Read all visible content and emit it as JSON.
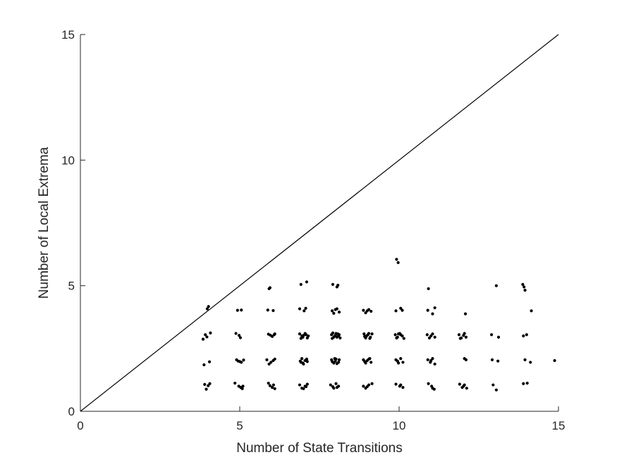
{
  "chart_data": {
    "type": "scatter",
    "xlabel": "Number of State Transitions",
    "ylabel": "Number of Local Extrema",
    "xlim": [
      0,
      15
    ],
    "ylim": [
      0,
      15
    ],
    "xticks": [
      0,
      5,
      10,
      15
    ],
    "yticks": [
      0,
      5,
      10,
      15
    ],
    "grid": false,
    "box": false,
    "reference_line": {
      "type": "identity",
      "x": [
        0,
        15
      ],
      "y": [
        0,
        15
      ],
      "color": "#000000"
    },
    "marker_color": "#000000",
    "points": [
      [
        3.98,
        4.08
      ],
      [
        4.02,
        4.17
      ],
      [
        3.92,
        3.05
      ],
      [
        4.08,
        3.12
      ],
      [
        3.85,
        2.87
      ],
      [
        3.97,
        2.96
      ],
      [
        3.88,
        1.85
      ],
      [
        4.05,
        1.97
      ],
      [
        3.9,
        1.07
      ],
      [
        4.01,
        1.02
      ],
      [
        3.95,
        0.88
      ],
      [
        4.06,
        1.1
      ],
      [
        4.93,
        4.02
      ],
      [
        5.05,
        4.03
      ],
      [
        4.88,
        3.1
      ],
      [
        4.98,
        3.02
      ],
      [
        5.02,
        2.93
      ],
      [
        4.95,
        2.0
      ],
      [
        5.05,
        1.95
      ],
      [
        5.12,
        2.04
      ],
      [
        4.9,
        2.05
      ],
      [
        5.0,
        1.98
      ],
      [
        4.85,
        1.12
      ],
      [
        4.97,
        1.0
      ],
      [
        5.08,
        0.9
      ],
      [
        5.1,
        1.0
      ],
      [
        5.03,
        0.95
      ],
      [
        5.92,
        4.88
      ],
      [
        5.95,
        4.92
      ],
      [
        5.88,
        4.03
      ],
      [
        6.05,
        4.01
      ],
      [
        5.9,
        3.07
      ],
      [
        6.02,
        2.98
      ],
      [
        6.1,
        3.08
      ],
      [
        5.96,
        3.03
      ],
      [
        6.08,
        3.05
      ],
      [
        5.85,
        2.05
      ],
      [
        5.98,
        1.95
      ],
      [
        6.1,
        2.08
      ],
      [
        5.92,
        1.88
      ],
      [
        6.05,
        2.02
      ],
      [
        5.9,
        1.12
      ],
      [
        6.02,
        0.95
      ],
      [
        6.1,
        0.9
      ],
      [
        5.95,
        1.02
      ],
      [
        6.06,
        1.05
      ],
      [
        6.92,
        5.05
      ],
      [
        7.1,
        5.15
      ],
      [
        6.88,
        4.08
      ],
      [
        7.07,
        4.1
      ],
      [
        7.02,
        4.0
      ],
      [
        6.88,
        3.08
      ],
      [
        6.95,
        3.0
      ],
      [
        7.05,
        3.1
      ],
      [
        7.12,
        2.92
      ],
      [
        6.98,
        2.95
      ],
      [
        7.08,
        3.05
      ],
      [
        6.92,
        2.9
      ],
      [
        7.0,
        3.02
      ],
      [
        7.15,
        3.0
      ],
      [
        6.9,
        2.0
      ],
      [
        6.98,
        1.92
      ],
      [
        7.05,
        2.02
      ],
      [
        7.12,
        1.98
      ],
      [
        6.95,
        2.1
      ],
      [
        7.0,
        1.88
      ],
      [
        7.1,
        2.08
      ],
      [
        6.92,
        1.95
      ],
      [
        6.88,
        1.05
      ],
      [
        6.95,
        0.92
      ],
      [
        7.05,
        1.0
      ],
      [
        7.12,
        1.08
      ],
      [
        7.0,
        0.9
      ],
      [
        7.08,
        0.98
      ],
      [
        7.92,
        5.05
      ],
      [
        8.08,
        5.02
      ],
      [
        8.05,
        4.95
      ],
      [
        7.9,
        4.0
      ],
      [
        7.95,
        3.9
      ],
      [
        8.05,
        4.08
      ],
      [
        8.12,
        3.95
      ],
      [
        8.0,
        4.05
      ],
      [
        7.88,
        3.05
      ],
      [
        7.95,
        2.95
      ],
      [
        8.02,
        3.1
      ],
      [
        8.1,
        3.0
      ],
      [
        8.15,
        2.92
      ],
      [
        7.9,
        2.9
      ],
      [
        8.0,
        3.02
      ],
      [
        8.08,
        3.08
      ],
      [
        7.98,
        3.0
      ],
      [
        8.12,
        3.05
      ],
      [
        7.92,
        3.12
      ],
      [
        8.05,
        2.95
      ],
      [
        7.88,
        2.05
      ],
      [
        7.95,
        1.92
      ],
      [
        8.02,
        2.08
      ],
      [
        8.1,
        1.95
      ],
      [
        8.0,
        2.0
      ],
      [
        8.12,
        2.05
      ],
      [
        7.9,
        1.98
      ],
      [
        8.05,
        1.9
      ],
      [
        7.98,
        2.1
      ],
      [
        7.85,
        1.05
      ],
      [
        7.95,
        0.92
      ],
      [
        8.02,
        1.1
      ],
      [
        8.1,
        1.0
      ],
      [
        8.05,
        0.95
      ],
      [
        7.92,
        0.98
      ],
      [
        8.88,
        4.02
      ],
      [
        8.95,
        3.92
      ],
      [
        9.05,
        4.05
      ],
      [
        9.12,
        3.98
      ],
      [
        9.0,
        4.0
      ],
      [
        8.9,
        3.08
      ],
      [
        8.95,
        2.92
      ],
      [
        9.02,
        3.05
      ],
      [
        9.1,
        2.95
      ],
      [
        9.15,
        3.08
      ],
      [
        8.98,
        3.0
      ],
      [
        9.08,
        2.9
      ],
      [
        8.92,
        2.98
      ],
      [
        9.05,
        3.1
      ],
      [
        8.88,
        2.05
      ],
      [
        8.95,
        1.92
      ],
      [
        9.05,
        2.08
      ],
      [
        9.12,
        1.95
      ],
      [
        9.0,
        2.02
      ],
      [
        9.08,
        2.1
      ],
      [
        8.92,
        1.98
      ],
      [
        8.88,
        1.0
      ],
      [
        8.95,
        0.92
      ],
      [
        9.05,
        1.05
      ],
      [
        9.15,
        1.1
      ],
      [
        9.0,
        0.98
      ],
      [
        9.92,
        6.05
      ],
      [
        9.97,
        5.92
      ],
      [
        9.9,
        4.0
      ],
      [
        10.05,
        4.1
      ],
      [
        10.1,
        4.02
      ],
      [
        9.88,
        3.05
      ],
      [
        9.95,
        2.95
      ],
      [
        10.02,
        3.1
      ],
      [
        10.1,
        3.0
      ],
      [
        10.15,
        2.9
      ],
      [
        9.92,
        2.92
      ],
      [
        10.05,
        3.05
      ],
      [
        9.98,
        3.08
      ],
      [
        9.9,
        2.05
      ],
      [
        9.98,
        1.92
      ],
      [
        10.05,
        2.1
      ],
      [
        10.12,
        1.95
      ],
      [
        9.95,
        2.0
      ],
      [
        9.9,
        1.08
      ],
      [
        10.02,
        1.0
      ],
      [
        10.12,
        0.95
      ],
      [
        10.05,
        1.05
      ],
      [
        10.92,
        4.88
      ],
      [
        10.9,
        4.02
      ],
      [
        11.05,
        3.88
      ],
      [
        11.12,
        4.12
      ],
      [
        10.88,
        3.05
      ],
      [
        10.95,
        2.92
      ],
      [
        11.05,
        3.08
      ],
      [
        11.12,
        2.95
      ],
      [
        11.0,
        3.0
      ],
      [
        10.9,
        2.05
      ],
      [
        10.98,
        1.95
      ],
      [
        11.05,
        2.1
      ],
      [
        11.12,
        1.88
      ],
      [
        11.0,
        2.02
      ],
      [
        10.92,
        1.1
      ],
      [
        11.05,
        0.92
      ],
      [
        11.1,
        0.88
      ],
      [
        11.02,
        1.0
      ],
      [
        11.88,
        3.05
      ],
      [
        11.95,
        2.92
      ],
      [
        12.05,
        3.1
      ],
      [
        12.1,
        2.95
      ],
      [
        11.92,
        2.9
      ],
      [
        12.02,
        3.02
      ],
      [
        12.08,
        3.88
      ],
      [
        12.05,
        2.1
      ],
      [
        12.1,
        2.05
      ],
      [
        11.9,
        1.08
      ],
      [
        11.98,
        0.95
      ],
      [
        12.05,
        1.05
      ],
      [
        12.12,
        0.92
      ],
      [
        12.02,
        1.0
      ],
      [
        12.9,
        3.05
      ],
      [
        13.12,
        2.95
      ],
      [
        12.92,
        2.05
      ],
      [
        13.1,
        2.0
      ],
      [
        12.95,
        1.05
      ],
      [
        13.05,
        0.85
      ],
      [
        13.05,
        5.0
      ],
      [
        13.88,
        5.05
      ],
      [
        13.92,
        4.95
      ],
      [
        13.95,
        4.82
      ],
      [
        14.15,
        4.0
      ],
      [
        13.9,
        3.0
      ],
      [
        14.0,
        3.05
      ],
      [
        13.95,
        2.05
      ],
      [
        14.12,
        1.95
      ],
      [
        13.9,
        1.1
      ],
      [
        14.02,
        1.12
      ],
      [
        14.88,
        2.02
      ]
    ]
  }
}
